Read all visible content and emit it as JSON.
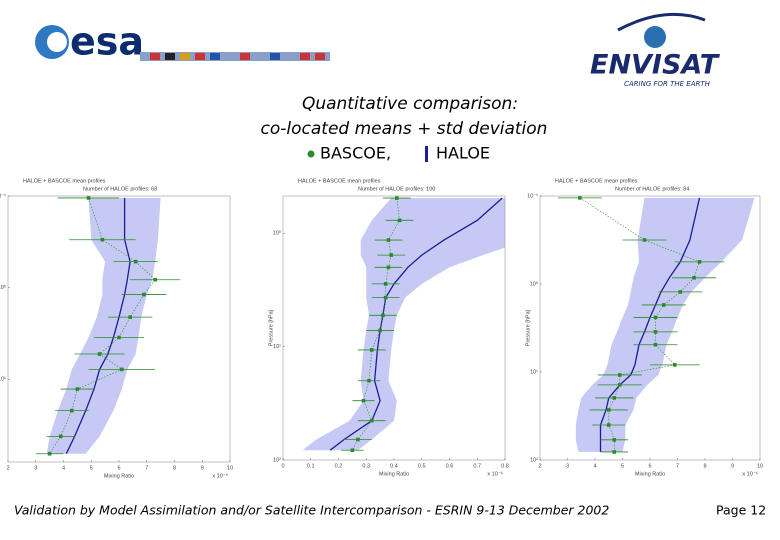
{
  "header": {
    "logo_left": "esa",
    "logo_right": "ENVISAT",
    "tagline": "CARING FOR THE EARTH"
  },
  "title": [
    "Quantitative comparison:",
    "co-located means + std deviation"
  ],
  "legend": {
    "model": "BASCOE,",
    "obs": "HALOE"
  },
  "colors": {
    "model": "#1c1c99",
    "band": "#c5c9f3",
    "obs": "#2a8a2a"
  },
  "charts": [
    {
      "type": "profile",
      "title": "HALOE + BASCOE mean profiles",
      "count_label": "Number of HALOE profiles: 68",
      "x_label": "Mixing Ratio",
      "y_label": "Pressure [hPa]",
      "x_multiplier": "x 10⁻⁶",
      "xlim": [
        2,
        10
      ],
      "xticks": [
        2,
        3,
        4,
        5,
        6,
        7,
        8,
        9,
        10
      ],
      "ylim": [
        0.1,
        80
      ],
      "yscale": "log",
      "yticks": [
        {
          "value": 0.1,
          "label": "10⁻¹"
        },
        {
          "value": 1,
          "label": "10⁰"
        },
        {
          "value": 10,
          "label": "10¹"
        }
      ],
      "levels": [
        0.105,
        0.3,
        0.52,
        0.82,
        1.19,
        2.1,
        3.5,
        5.3,
        7.8,
        12.8,
        22,
        42,
        65
      ],
      "haloe": {
        "mean": [
          4.9,
          5.4,
          6.6,
          7.3,
          6.9,
          6.4,
          6.0,
          5.3,
          6.1,
          4.5,
          4.3,
          3.9,
          3.5
        ],
        "std": [
          1.1,
          1.2,
          0.8,
          0.9,
          0.8,
          0.8,
          0.9,
          0.9,
          1.2,
          0.6,
          0.6,
          0.5,
          0.5
        ]
      },
      "bascoe": {
        "mean": [
          6.2,
          6.2,
          6.4,
          6.3,
          6.2,
          6.0,
          5.8,
          5.6,
          5.3,
          5.1,
          4.8,
          4.4,
          4.1
        ],
        "std": [
          1.3,
          1.2,
          0.9,
          0.9,
          0.8,
          0.8,
          0.9,
          1.0,
          1.0,
          1.0,
          1.0,
          0.9,
          0.7
        ]
      }
    },
    {
      "type": "profile",
      "title": "HALOE + BASCOE mean profiles",
      "count_label": "Number of HALOE profiles: 100",
      "x_label": "Mixing Ratio",
      "y_label": "Pressure [hPa]",
      "x_multiplier": "x 10⁻⁶",
      "xlim": [
        0,
        0.8
      ],
      "xticks": [
        0,
        0.1,
        0.2,
        0.3,
        0.4,
        0.5,
        0.6,
        0.7,
        0.8
      ],
      "ylim": [
        0.47,
        100
      ],
      "yscale": "log",
      "yticks": [
        {
          "value": 1,
          "label": "10⁰"
        },
        {
          "value": 10,
          "label": "10¹"
        },
        {
          "value": 100,
          "label": "10²"
        }
      ],
      "levels": [
        0.49,
        0.77,
        1.15,
        1.56,
        2.0,
        2.8,
        3.7,
        5.3,
        7.2,
        10.7,
        20,
        30,
        45,
        66,
        82
      ],
      "haloe": {
        "mean": [
          0.41,
          0.42,
          0.38,
          0.39,
          0.38,
          0.37,
          0.37,
          0.36,
          0.35,
          0.32,
          0.31,
          0.29,
          0.32,
          0.27,
          0.25
        ],
        "std": [
          0.05,
          0.05,
          0.05,
          0.05,
          0.05,
          0.05,
          0.05,
          0.05,
          0.05,
          0.05,
          0.04,
          0.04,
          0.05,
          0.05,
          0.04
        ]
      },
      "bascoe": {
        "mean": [
          0.79,
          0.7,
          0.58,
          0.5,
          0.45,
          0.4,
          0.37,
          0.36,
          0.35,
          0.34,
          0.33,
          0.35,
          0.32,
          0.22,
          0.17
        ],
        "std": [
          0.4,
          0.38,
          0.3,
          0.22,
          0.15,
          0.1,
          0.07,
          0.05,
          0.05,
          0.05,
          0.05,
          0.06,
          0.08,
          0.1,
          0.1
        ]
      }
    },
    {
      "type": "profile",
      "title": "HALOE + BASCOE mean profiles",
      "count_label": "Number of HALOE profiles: 84",
      "x_label": "Mixing Ratio",
      "y_label": "Pressure [hPa]",
      "x_multiplier": "x 10⁻⁶",
      "xlim": [
        2,
        10
      ],
      "xticks": [
        2,
        3,
        4,
        5,
        6,
        7,
        8,
        9,
        10
      ],
      "ylim": [
        0.1,
        100
      ],
      "yscale": "log",
      "yticks": [
        {
          "value": 0.1,
          "label": "10⁻¹"
        },
        {
          "value": 1,
          "label": "10⁰"
        },
        {
          "value": 10,
          "label": "10¹"
        },
        {
          "value": 100,
          "label": "10²"
        }
      ],
      "levels": [
        0.105,
        0.316,
        0.56,
        0.85,
        1.23,
        1.73,
        2.4,
        3.5,
        4.9,
        8.3,
        10.8,
        14,
        19.7,
        27,
        40,
        59,
        81
      ],
      "haloe": {
        "mean": [
          3.45,
          5.8,
          7.8,
          7.6,
          7.1,
          6.5,
          6.2,
          6.2,
          6.2,
          6.9,
          4.9,
          4.9,
          4.7,
          4.5,
          4.5,
          4.7,
          4.7
        ],
        "std": [
          0.8,
          0.8,
          0.9,
          0.8,
          0.8,
          0.8,
          0.8,
          0.8,
          0.8,
          0.9,
          0.8,
          0.8,
          0.7,
          0.7,
          0.6,
          0.5,
          0.5
        ]
      },
      "bascoe": {
        "mean": [
          7.8,
          7.45,
          7.1,
          6.7,
          6.4,
          6.2,
          6.0,
          5.8,
          5.6,
          5.45,
          5.3,
          4.9,
          4.5,
          4.4,
          4.2,
          4.2,
          4.2
        ],
        "std": [
          2.0,
          1.9,
          1.5,
          1.3,
          1.1,
          1.0,
          1.0,
          1.0,
          1.0,
          1.0,
          1.0,
          1.0,
          1.0,
          1.0,
          0.9,
          0.9,
          0.8
        ]
      }
    }
  ],
  "footer": "Validation by Model Assimilation and/or Satellite Intercomparison - ESRIN 9-13 December 2002",
  "page": "Page 12"
}
